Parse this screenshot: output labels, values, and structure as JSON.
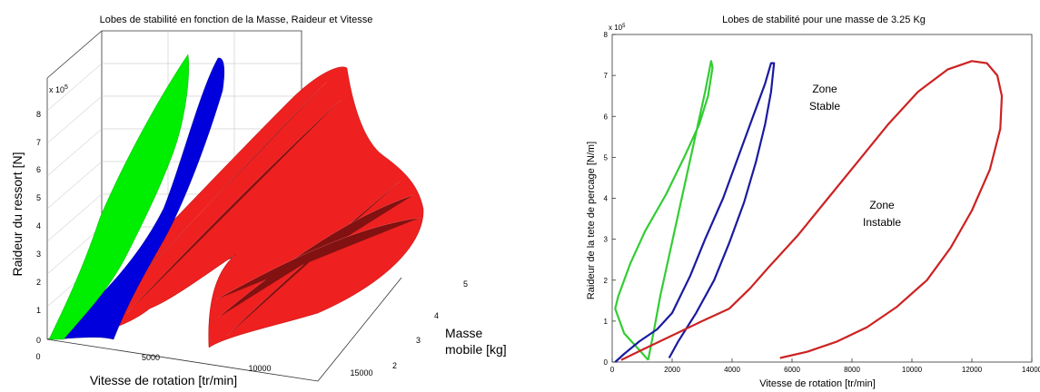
{
  "chart_data": [
    {
      "type": "surface3d",
      "title": "Lobes de stabilité en fonction de la Masse, Raideur et Vitesse",
      "xlabel": "Vitesse de rotation [tr/min]",
      "ylabel": "Masse mobile [kg]",
      "zlabel": "Raideur du ressort [N]",
      "z_exponent": "x 10",
      "z_exponent_power": "5",
      "xlim": [
        0,
        15000
      ],
      "ylim": [
        2,
        5
      ],
      "zlim": [
        0,
        800000
      ],
      "x_ticks": [
        "0",
        "5000",
        "10000",
        "15000"
      ],
      "y_ticks": [
        "2",
        "3",
        "4",
        "5"
      ],
      "z_ticks": [
        "0",
        "1",
        "2",
        "3",
        "4",
        "5",
        "6",
        "7",
        "8"
      ],
      "grid": true,
      "series": [
        {
          "color": "#00ee00",
          "x_range": [
            0,
            3500
          ]
        },
        {
          "color": "#0000dd",
          "x_range": [
            0,
            5400
          ]
        },
        {
          "color": "#ee0000",
          "x_range": [
            0,
            13500
          ]
        }
      ]
    },
    {
      "type": "line",
      "title": "Lobes de stabilité pour une masse de 3.25 Kg",
      "xlabel": "Vitesse de rotation  [tr/min]",
      "ylabel": "Raideur de la tete de percage   [N/m]",
      "y_exponent": "x 10",
      "y_exponent_power": "5",
      "xlim": [
        0,
        14000
      ],
      "ylim": [
        0,
        8
      ],
      "x_ticks": [
        0,
        2000,
        4000,
        6000,
        8000,
        10000,
        12000,
        14000
      ],
      "y_ticks": [
        0,
        1,
        2,
        3,
        4,
        5,
        6,
        7,
        8
      ],
      "grid": false,
      "annotations": {
        "stable_line1": "Zone",
        "stable_line2": "Stable",
        "unstable_line1": "Zone",
        "unstable_line2": "Instable"
      },
      "series": [
        {
          "color": "#33cc33",
          "x": [
            1200,
            900,
            400,
            100,
            200,
            600,
            1100,
            1800,
            2400,
            2900,
            3200,
            3350,
            3300,
            3100,
            2800,
            2500,
            2200,
            1900,
            1600,
            1400,
            1200
          ],
          "y": [
            0.05,
            0.3,
            0.7,
            1.3,
            1.6,
            2.4,
            3.2,
            4.1,
            5.0,
            5.8,
            6.5,
            7.2,
            7.35,
            6.6,
            5.6,
            4.6,
            3.6,
            2.6,
            1.6,
            0.8,
            0.05
          ]
        },
        {
          "color": "#1a1aa0",
          "x": [
            1900,
            2200,
            2800,
            3400,
            3900,
            4400,
            4800,
            5100,
            5300,
            5400,
            5300,
            5100,
            4700,
            4200,
            3700,
            3100,
            2600,
            2000,
            1500,
            900,
            400,
            100
          ],
          "y": [
            0.1,
            0.5,
            1.2,
            2.0,
            2.9,
            3.9,
            4.9,
            5.8,
            6.6,
            7.3,
            7.3,
            6.8,
            6.0,
            5.0,
            4.0,
            3.0,
            2.1,
            1.2,
            0.8,
            0.5,
            0.2,
            0
          ]
        },
        {
          "color": "#cc2222",
          "x": [
            5600,
            6500,
            7500,
            8500,
            9500,
            10500,
            11300,
            12000,
            12600,
            12950,
            13000,
            12850,
            12500,
            12000,
            11200,
            10200,
            9200,
            8200,
            7200,
            6200,
            5200,
            4600,
            3900,
            3000,
            2000,
            1000,
            300
          ],
          "y": [
            0.1,
            0.25,
            0.5,
            0.85,
            1.35,
            2.0,
            2.8,
            3.7,
            4.7,
            5.7,
            6.5,
            7.0,
            7.3,
            7.35,
            7.15,
            6.6,
            5.8,
            4.9,
            4.0,
            3.1,
            2.3,
            1.8,
            1.3,
            1.0,
            0.65,
            0.3,
            0.05
          ]
        }
      ]
    }
  ]
}
